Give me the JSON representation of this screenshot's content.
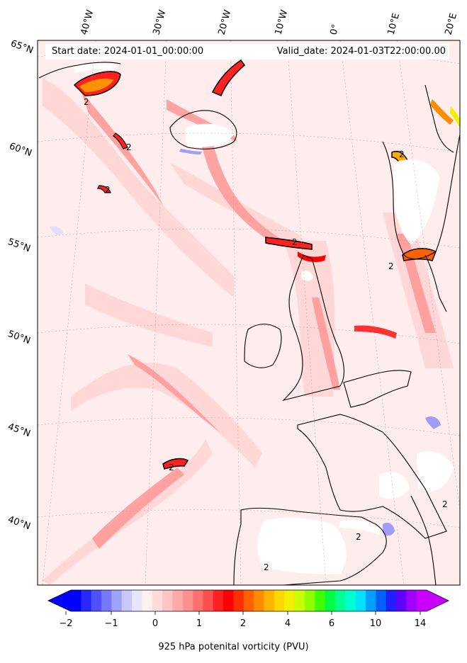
{
  "map": {
    "start_label": "Start date: 2024-01-01_00:00:00",
    "valid_label": "Valid_date: 2024-01-03T22:00:00.00",
    "lon_labels": [
      "40°W",
      "30°W",
      "20°W",
      "10°W",
      "0°",
      "10°E",
      "20°E"
    ],
    "lat_labels": [
      "65°N",
      "60°N",
      "55°N",
      "50°N",
      "45°N",
      "40°N"
    ],
    "contour_label": "2",
    "colorbar": {
      "label": "925 hPa potenital vorticity (PVU)",
      "ticks": [
        "−2",
        "−1",
        "0",
        "1",
        "2",
        "4",
        "6",
        "10",
        "14"
      ],
      "colors": [
        "#0000ff",
        "#2828ff",
        "#5050ff",
        "#7878ff",
        "#a0a0ff",
        "#c8c8ff",
        "#e6e6ff",
        "#fff0f0",
        "#ffdcdc",
        "#ffc4c4",
        "#ffaaaa",
        "#ff9090",
        "#ff7070",
        "#ff5050",
        "#ff2020",
        "#ff0000",
        "#ff3000",
        "#ff6000",
        "#ff8c00",
        "#ffb400",
        "#ffd700",
        "#f0f000",
        "#c8ff00",
        "#90ff00",
        "#40ff00",
        "#00ff40",
        "#00ff90",
        "#00ffd0",
        "#00e0ff",
        "#00a0ff",
        "#0060ff",
        "#2020ff",
        "#6000ff",
        "#a000ff",
        "#c800ff"
      ]
    }
  }
}
